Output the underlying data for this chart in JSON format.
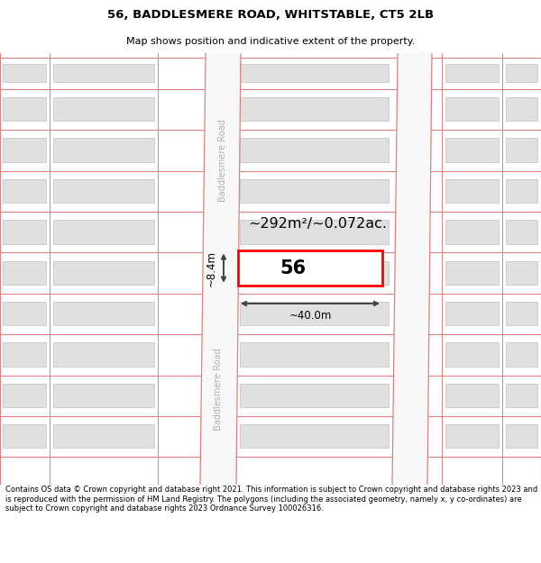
{
  "title_line1": "56, BADDLESMERE ROAD, WHITSTABLE, CT5 2LB",
  "title_line2": "Map shows position and indicative extent of the property.",
  "footer_text": "Contains OS data © Crown copyright and database right 2021. This information is subject to Crown copyright and database rights 2023 and is reproduced with the permission of HM Land Registry. The polygons (including the associated geometry, namely x, y co-ordinates) are subject to Crown copyright and database rights 2023 Ordnance Survey 100026316.",
  "bg_color": "#ffffff",
  "map_bg": "#ffffff",
  "road_line_color": "#e08080",
  "block_fill": "#e0e0e0",
  "block_edge": "#c8c8c8",
  "highlight_color": "#ff0000",
  "arrow_color": "#404040",
  "text_color": "#000000",
  "road_label_color": "#b0b0b0",
  "area_text": "~292m²/~0.072ac.",
  "width_text": "~40.0m",
  "height_text": "~8.4m",
  "number_text": "56",
  "road_name": "Baddlesmere Road",
  "title_fontsize": 9.5,
  "subtitle_fontsize": 8,
  "footer_fontsize": 6.0
}
